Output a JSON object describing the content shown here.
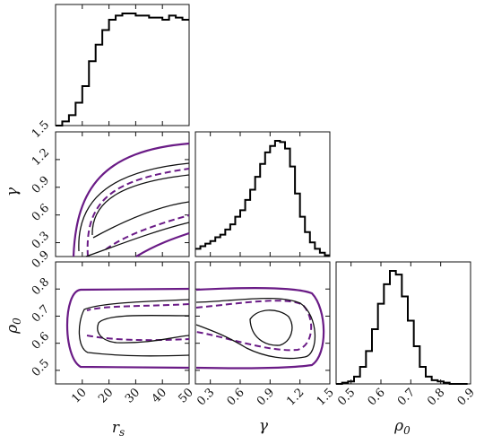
{
  "chart_data": {
    "type": "corner",
    "parameters": [
      {
        "name": "r_s",
        "label_main": "r",
        "label_sub": "s",
        "range": [
          0,
          50
        ],
        "ticks": [
          "10",
          "20",
          "30",
          "40",
          "50"
        ],
        "tick_values": [
          10,
          20,
          30,
          40,
          50
        ]
      },
      {
        "name": "gamma",
        "label_main": "γ",
        "label_sub": "",
        "range": [
          0.15,
          1.5
        ],
        "ticks": [
          "0.3",
          "0.6",
          "0.9",
          "1.2",
          "1.5"
        ],
        "tick_values": [
          0.3,
          0.6,
          0.9,
          1.2,
          1.5
        ]
      },
      {
        "name": "rho_0",
        "label_main": "ρ",
        "label_sub": "0",
        "range": [
          0.45,
          0.9
        ],
        "ticks": [
          "0.5",
          "0.6",
          "0.7",
          "0.8",
          "0.9"
        ],
        "tick_values": [
          0.5,
          0.6,
          0.7,
          0.8,
          0.9
        ]
      }
    ],
    "marginals": [
      {
        "param": "r_s",
        "bins": [
          0,
          2.5,
          5,
          7.5,
          10,
          12.5,
          15,
          17.5,
          20,
          22.5,
          25,
          27.5,
          30,
          32.5,
          35,
          37.5,
          40,
          42.5,
          45,
          47.5,
          50
        ],
        "counts": [
          0,
          2,
          5,
          11,
          19,
          31,
          39,
          46,
          51,
          53,
          54,
          54,
          53,
          53,
          52,
          52,
          51,
          53,
          52,
          51
        ]
      },
      {
        "param": "gamma",
        "bins": [
          0.15,
          0.2,
          0.25,
          0.3,
          0.35,
          0.4,
          0.45,
          0.5,
          0.55,
          0.6,
          0.65,
          0.7,
          0.75,
          0.8,
          0.85,
          0.9,
          0.95,
          1.0,
          1.05,
          1.1,
          1.15,
          1.2,
          1.25,
          1.3,
          1.35,
          1.4,
          1.45,
          1.5
        ],
        "counts": [
          6,
          8,
          10,
          12,
          15,
          17,
          21,
          25,
          31,
          36,
          44,
          52,
          62,
          72,
          81,
          86,
          90,
          89,
          84,
          70,
          49,
          31,
          19,
          11,
          6,
          3,
          1
        ]
      },
      {
        "param": "rho_0",
        "bins": [
          0.45,
          0.47,
          0.49,
          0.51,
          0.53,
          0.55,
          0.57,
          0.59,
          0.61,
          0.63,
          0.65,
          0.67,
          0.69,
          0.71,
          0.73,
          0.75,
          0.77,
          0.79,
          0.81,
          0.83,
          0.85,
          0.87,
          0.89
        ],
        "counts": [
          0,
          1,
          2,
          6,
          14,
          27,
          45,
          66,
          82,
          93,
          90,
          72,
          52,
          31,
          14,
          6,
          3,
          2,
          1,
          0,
          0,
          0
        ]
      }
    ],
    "contour_colors": {
      "inner": "#111111",
      "outer": "#6a1b86"
    }
  },
  "labels": {
    "rs_main": "r",
    "rs_sub": "s",
    "gamma_main": "γ",
    "rho_main": "ρ",
    "rho_sub": "0"
  }
}
